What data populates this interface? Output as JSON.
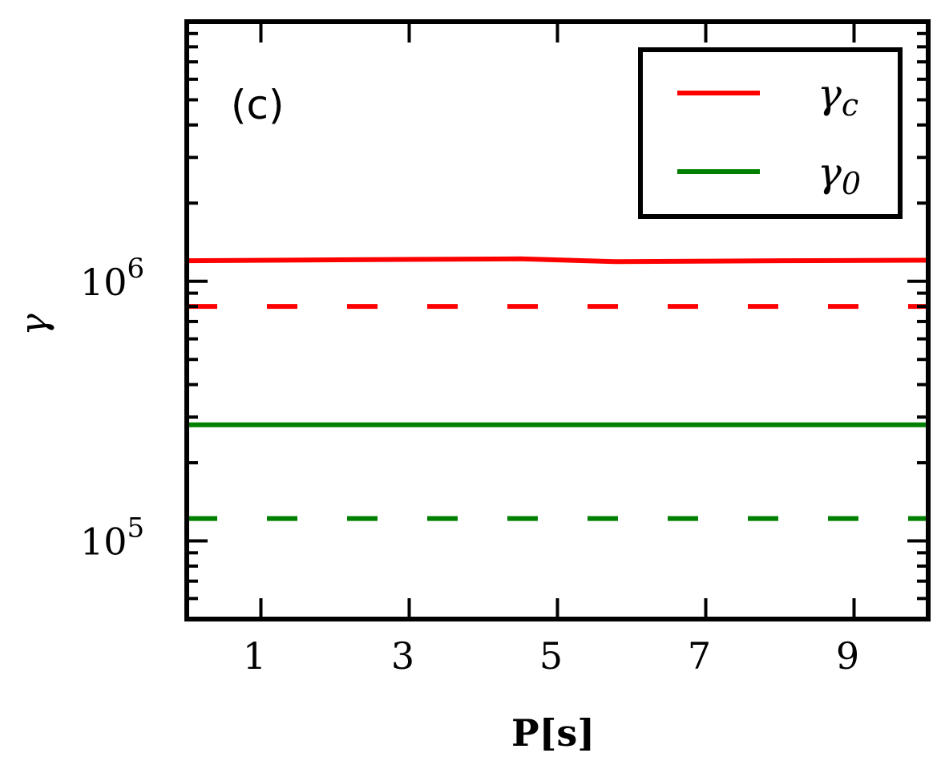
{
  "chart_data": {
    "type": "line",
    "panel_label": "(c)",
    "xlabel": "P[s]",
    "ylabel": "γ",
    "xlim": [
      0.0,
      10.0
    ],
    "ylim": [
      50000,
      10000000
    ],
    "yscale": "log",
    "x_ticks": [
      1,
      3,
      5,
      7,
      9
    ],
    "x_tick_labels": [
      "1",
      "3",
      "5",
      "7",
      "9"
    ],
    "y_major_ticks": [
      {
        "value": 100000,
        "base": "10",
        "exp": "5"
      },
      {
        "value": 1000000,
        "base": "10",
        "exp": "6"
      }
    ],
    "legend": {
      "position": "top-right",
      "entries": [
        {
          "label": "γ",
          "subscript": "c",
          "color": "#ff0000"
        },
        {
          "label": "γ",
          "subscript": "0",
          "color": "#008000"
        }
      ]
    },
    "series": [
      {
        "name": "γc",
        "color": "#ff0000",
        "style": "solid",
        "x": [
          0,
          2,
          4.5,
          5.8,
          8,
          10
        ],
        "y": [
          1200000,
          1210000,
          1220000,
          1190000,
          1200000,
          1205000
        ]
      },
      {
        "name": "",
        "color": "#ff0000",
        "style": "dashed",
        "x": [
          0,
          10
        ],
        "y": [
          800000,
          800000
        ]
      },
      {
        "name": "γ0",
        "color": "#008000",
        "style": "solid",
        "x": [
          0,
          10
        ],
        "y": [
          280000,
          280000
        ]
      },
      {
        "name": "",
        "color": "#008000",
        "style": "dashed",
        "x": [
          0,
          10
        ],
        "y": [
          122000,
          122000
        ]
      }
    ]
  }
}
